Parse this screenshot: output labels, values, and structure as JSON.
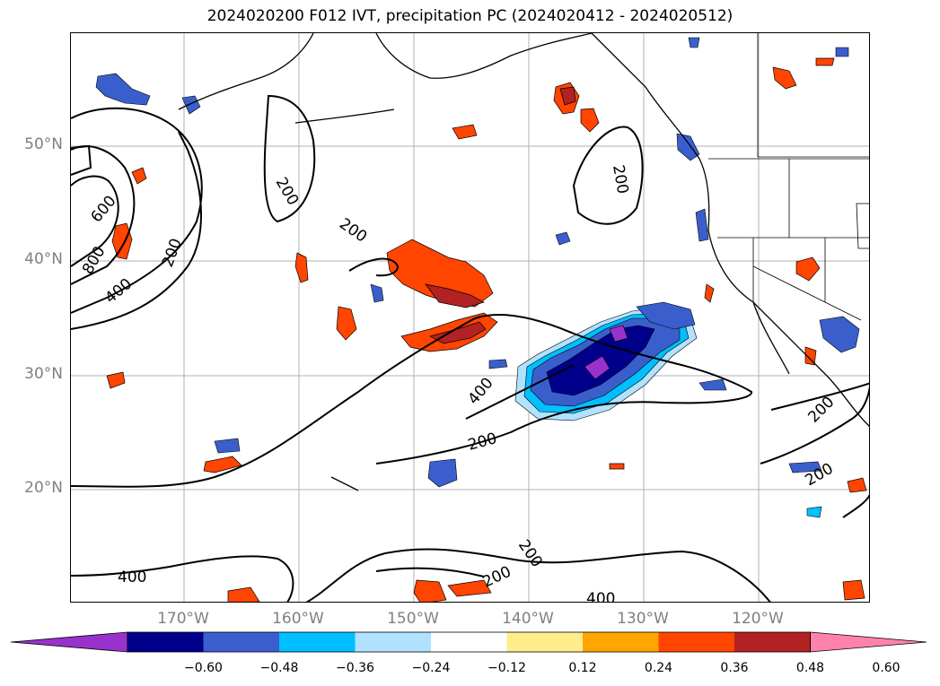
{
  "title": "2024020200 F012 IVT, precipitation PC (2024020412 - 2024020512)",
  "lat_labels": [
    "50°N",
    "40°N",
    "30°N",
    "20°N"
  ],
  "lon_labels": [
    "170°W",
    "160°W",
    "150°W",
    "140°W",
    "130°W",
    "120°W"
  ],
  "contour_labels": [
    "600",
    "800",
    "400",
    "200",
    "200",
    "200",
    "200",
    "400",
    "200",
    "200",
    "200",
    "200",
    "400",
    "400",
    "200"
  ],
  "colorbar": {
    "ticks": [
      "−0.60",
      "−0.48",
      "−0.36",
      "−0.24",
      "−0.12",
      "0.12",
      "0.24",
      "0.36",
      "0.48",
      "0.60"
    ],
    "colors": [
      "#9932cc",
      "#00008b",
      "#3a5fcd",
      "#00bfff",
      "#b0e2ff",
      "#ffffff",
      "#ffec8b",
      "#ffa500",
      "#ff4500",
      "#b22222",
      "#ff82ab"
    ]
  },
  "colors": {
    "grid": "#b0b0b0",
    "contour": "#000000",
    "tick_label": "#808080"
  }
}
